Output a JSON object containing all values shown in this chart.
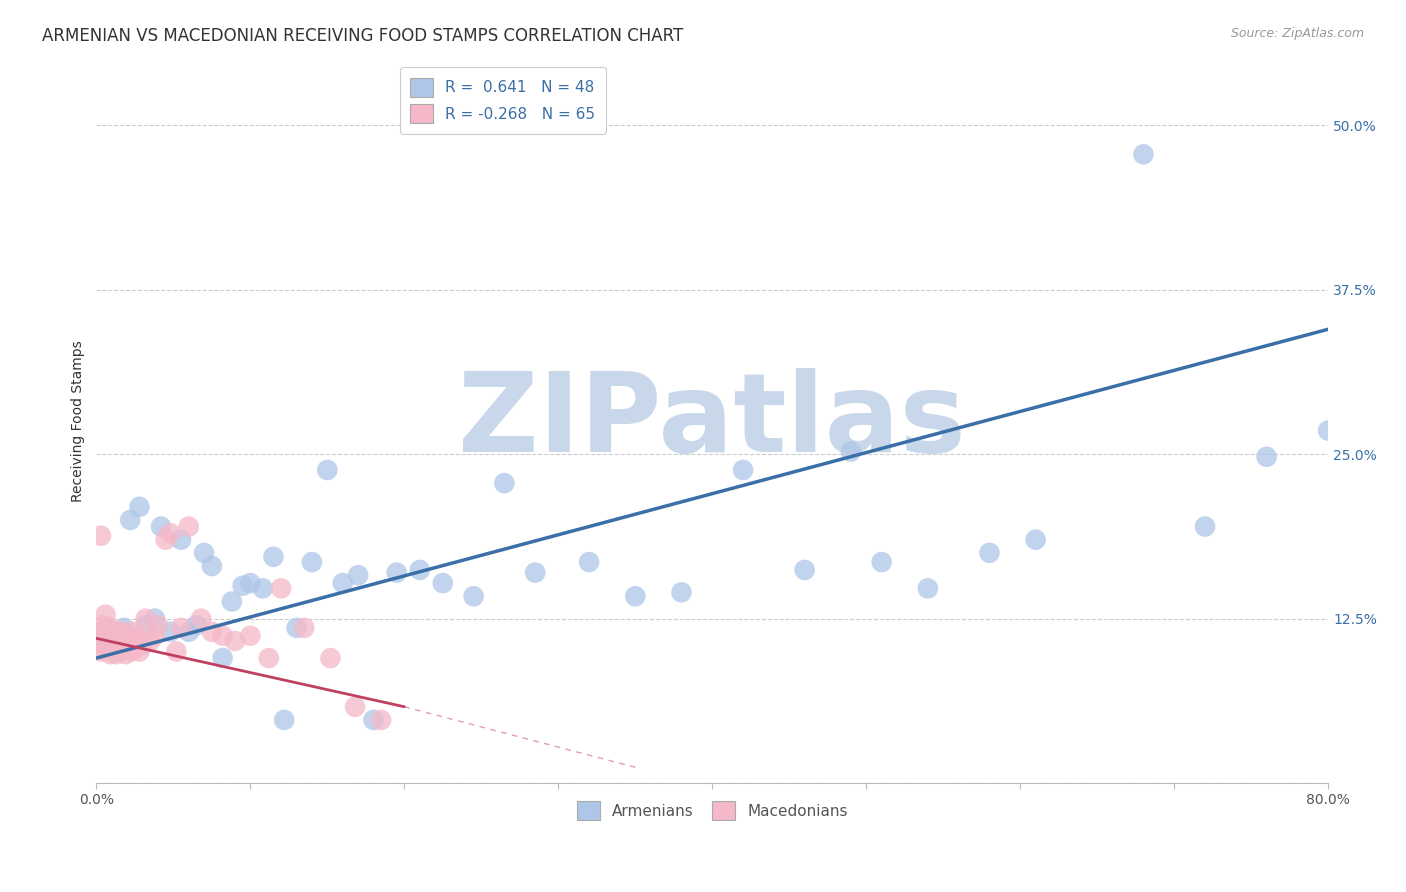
{
  "title": "ARMENIAN VS MACEDONIAN RECEIVING FOOD STAMPS CORRELATION CHART",
  "source": "Source: ZipAtlas.com",
  "ylabel": "Receiving Food Stamps",
  "xlabel": "",
  "xmin": 0.0,
  "xmax": 0.8,
  "ymin": 0.0,
  "ymax": 0.55,
  "xticks": [
    0.0,
    0.1,
    0.2,
    0.3,
    0.4,
    0.5,
    0.6,
    0.7,
    0.8
  ],
  "xticklabels": [
    "0.0%",
    "",
    "",
    "",
    "",
    "",
    "",
    "",
    "80.0%"
  ],
  "yticks": [
    0.0,
    0.125,
    0.25,
    0.375,
    0.5
  ],
  "yticklabels": [
    "",
    "12.5%",
    "25.0%",
    "37.5%",
    "50.0%"
  ],
  "grid_color": "#cccccc",
  "armenian_color": "#aec6e8",
  "macedonian_color": "#f4b8c8",
  "armenian_line_color": "#3a6fa8",
  "macedonian_line_color": "#c04060",
  "R_armenian": 0.641,
  "N_armenian": 48,
  "R_macedonian": -0.268,
  "N_macedonian": 65,
  "legend_label_armenian": "Armenians",
  "legend_label_macedonian": "Macedonians",
  "watermark": "ZIPatlas",
  "watermark_color": "#c8d8ea",
  "title_fontsize": 12,
  "axis_label_fontsize": 10,
  "tick_fontsize": 10,
  "legend_fontsize": 11,
  "arm_line_x0": 0.0,
  "arm_line_y0": 0.095,
  "arm_line_x1": 0.8,
  "arm_line_y1": 0.345,
  "mac_line_x0": 0.0,
  "mac_line_y0": 0.11,
  "mac_line_x1": 0.2,
  "mac_line_y1": 0.058,
  "armenian_scatter_x": [
    0.005,
    0.01,
    0.013,
    0.018,
    0.022,
    0.028,
    0.032,
    0.038,
    0.042,
    0.048,
    0.055,
    0.06,
    0.065,
    0.07,
    0.075,
    0.082,
    0.088,
    0.095,
    0.1,
    0.108,
    0.115,
    0.122,
    0.13,
    0.14,
    0.15,
    0.16,
    0.17,
    0.18,
    0.195,
    0.21,
    0.225,
    0.245,
    0.265,
    0.285,
    0.32,
    0.35,
    0.38,
    0.42,
    0.46,
    0.49,
    0.51,
    0.54,
    0.58,
    0.61,
    0.68,
    0.72,
    0.76,
    0.8
  ],
  "armenian_scatter_y": [
    0.108,
    0.115,
    0.1,
    0.118,
    0.2,
    0.21,
    0.12,
    0.125,
    0.195,
    0.115,
    0.185,
    0.115,
    0.12,
    0.175,
    0.165,
    0.095,
    0.138,
    0.15,
    0.152,
    0.148,
    0.172,
    0.048,
    0.118,
    0.168,
    0.238,
    0.152,
    0.158,
    0.048,
    0.16,
    0.162,
    0.152,
    0.142,
    0.228,
    0.16,
    0.168,
    0.142,
    0.145,
    0.238,
    0.162,
    0.252,
    0.168,
    0.148,
    0.175,
    0.185,
    0.478,
    0.195,
    0.248,
    0.268
  ],
  "macedonian_scatter_x": [
    0.001,
    0.002,
    0.003,
    0.003,
    0.004,
    0.004,
    0.005,
    0.005,
    0.006,
    0.006,
    0.007,
    0.007,
    0.008,
    0.008,
    0.009,
    0.009,
    0.01,
    0.01,
    0.011,
    0.011,
    0.012,
    0.012,
    0.013,
    0.013,
    0.014,
    0.014,
    0.015,
    0.015,
    0.016,
    0.016,
    0.017,
    0.017,
    0.018,
    0.018,
    0.019,
    0.02,
    0.021,
    0.022,
    0.023,
    0.024,
    0.025,
    0.026,
    0.027,
    0.028,
    0.03,
    0.032,
    0.035,
    0.038,
    0.04,
    0.045,
    0.048,
    0.052,
    0.055,
    0.06,
    0.068,
    0.075,
    0.082,
    0.09,
    0.1,
    0.112,
    0.12,
    0.135,
    0.152,
    0.168,
    0.185
  ],
  "macedonian_scatter_y": [
    0.108,
    0.115,
    0.1,
    0.188,
    0.108,
    0.115,
    0.102,
    0.12,
    0.112,
    0.128,
    0.115,
    0.105,
    0.108,
    0.118,
    0.098,
    0.11,
    0.102,
    0.115,
    0.112,
    0.105,
    0.108,
    0.115,
    0.098,
    0.11,
    0.105,
    0.112,
    0.1,
    0.115,
    0.108,
    0.102,
    0.11,
    0.115,
    0.105,
    0.112,
    0.098,
    0.105,
    0.112,
    0.108,
    0.1,
    0.115,
    0.105,
    0.108,
    0.112,
    0.1,
    0.105,
    0.125,
    0.108,
    0.112,
    0.12,
    0.185,
    0.19,
    0.1,
    0.118,
    0.195,
    0.125,
    0.115,
    0.112,
    0.108,
    0.112,
    0.095,
    0.148,
    0.118,
    0.095,
    0.058,
    0.048
  ]
}
